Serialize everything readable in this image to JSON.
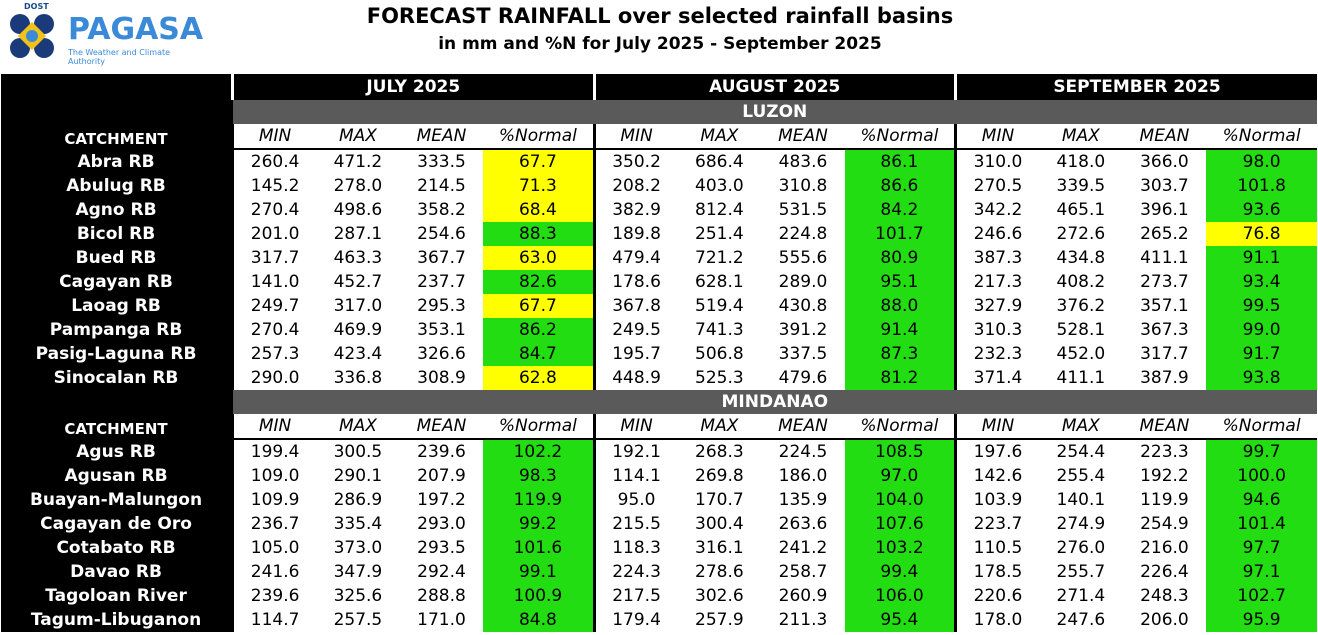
{
  "header": {
    "dost": "DOST",
    "brand": "PAGASA",
    "tagline": "The Weather and Climate Authority",
    "title": "FORECAST RAINFALL over selected rainfall basins",
    "subtitle": "in mm and %N for July 2025 - September 2025"
  },
  "months": [
    "JULY 2025",
    "AUGUST 2025",
    "SEPTEMBER 2025"
  ],
  "column_labels": {
    "catchment": "CATCHMENT",
    "min": "MIN",
    "max": "MAX",
    "mean": "MEAN",
    "normal": "%Normal"
  },
  "colors": {
    "green": "#22dd11",
    "yellow": "#ffff00",
    "black": "#000000",
    "gray": "#5a5a5a",
    "brand": "#3a8ad8"
  },
  "regions": [
    {
      "name": "LUZON",
      "rows": [
        {
          "name": "Abra RB",
          "vals": [
            [
              "260.4",
              "471.2",
              "333.5",
              "67.7",
              "yellow"
            ],
            [
              "350.2",
              "686.4",
              "483.6",
              "86.1",
              "green"
            ],
            [
              "310.0",
              "418.0",
              "366.0",
              "98.0",
              "green"
            ]
          ]
        },
        {
          "name": "Abulug RB",
          "vals": [
            [
              "145.2",
              "278.0",
              "214.5",
              "71.3",
              "yellow"
            ],
            [
              "208.2",
              "403.0",
              "310.8",
              "86.6",
              "green"
            ],
            [
              "270.5",
              "339.5",
              "303.7",
              "101.8",
              "green"
            ]
          ]
        },
        {
          "name": "Agno RB",
          "vals": [
            [
              "270.4",
              "498.6",
              "358.2",
              "68.4",
              "yellow"
            ],
            [
              "382.9",
              "812.4",
              "531.5",
              "84.2",
              "green"
            ],
            [
              "342.2",
              "465.1",
              "396.1",
              "93.6",
              "green"
            ]
          ]
        },
        {
          "name": "Bicol RB",
          "vals": [
            [
              "201.0",
              "287.1",
              "254.6",
              "88.3",
              "green"
            ],
            [
              "189.8",
              "251.4",
              "224.8",
              "101.7",
              "green"
            ],
            [
              "246.6",
              "272.6",
              "265.2",
              "76.8",
              "yellow"
            ]
          ]
        },
        {
          "name": "Bued RB",
          "vals": [
            [
              "317.7",
              "463.3",
              "367.7",
              "63.0",
              "yellow"
            ],
            [
              "479.4",
              "721.2",
              "555.6",
              "80.9",
              "green"
            ],
            [
              "387.3",
              "434.8",
              "411.1",
              "91.1",
              "green"
            ]
          ]
        },
        {
          "name": "Cagayan RB",
          "vals": [
            [
              "141.0",
              "452.7",
              "237.7",
              "82.6",
              "green"
            ],
            [
              "178.6",
              "628.1",
              "289.0",
              "95.1",
              "green"
            ],
            [
              "217.3",
              "408.2",
              "273.7",
              "93.4",
              "green"
            ]
          ]
        },
        {
          "name": "Laoag RB",
          "vals": [
            [
              "249.7",
              "317.0",
              "295.3",
              "67.7",
              "yellow"
            ],
            [
              "367.8",
              "519.4",
              "430.8",
              "88.0",
              "green"
            ],
            [
              "327.9",
              "376.2",
              "357.1",
              "99.5",
              "green"
            ]
          ]
        },
        {
          "name": "Pampanga RB",
          "vals": [
            [
              "270.4",
              "469.9",
              "353.1",
              "86.2",
              "green"
            ],
            [
              "249.5",
              "741.3",
              "391.2",
              "91.4",
              "green"
            ],
            [
              "310.3",
              "528.1",
              "367.3",
              "99.0",
              "green"
            ]
          ]
        },
        {
          "name": "Pasig-Laguna RB",
          "vals": [
            [
              "257.3",
              "423.4",
              "326.6",
              "84.7",
              "green"
            ],
            [
              "195.7",
              "506.8",
              "337.5",
              "87.3",
              "green"
            ],
            [
              "232.3",
              "452.0",
              "317.7",
              "91.7",
              "green"
            ]
          ]
        },
        {
          "name": "Sinocalan RB",
          "vals": [
            [
              "290.0",
              "336.8",
              "308.9",
              "62.8",
              "yellow"
            ],
            [
              "448.9",
              "525.3",
              "479.6",
              "81.2",
              "green"
            ],
            [
              "371.4",
              "411.1",
              "387.9",
              "93.8",
              "green"
            ]
          ]
        }
      ]
    },
    {
      "name": "MINDANAO",
      "rows": [
        {
          "name": "Agus RB",
          "vals": [
            [
              "199.4",
              "300.5",
              "239.6",
              "102.2",
              "green"
            ],
            [
              "192.1",
              "268.3",
              "224.5",
              "108.5",
              "green"
            ],
            [
              "197.6",
              "254.4",
              "223.3",
              "99.7",
              "green"
            ]
          ]
        },
        {
          "name": "Agusan RB",
          "vals": [
            [
              "109.0",
              "290.1",
              "207.9",
              "98.3",
              "green"
            ],
            [
              "114.1",
              "269.8",
              "186.0",
              "97.0",
              "green"
            ],
            [
              "142.6",
              "255.4",
              "192.2",
              "100.0",
              "green"
            ]
          ]
        },
        {
          "name": "Buayan-Malungon",
          "vals": [
            [
              "109.9",
              "286.9",
              "197.2",
              "119.9",
              "green"
            ],
            [
              "95.0",
              "170.7",
              "135.9",
              "104.0",
              "green"
            ],
            [
              "103.9",
              "140.1",
              "119.9",
              "94.6",
              "green"
            ]
          ]
        },
        {
          "name": "Cagayan de Oro",
          "vals": [
            [
              "236.7",
              "335.4",
              "293.0",
              "99.2",
              "green"
            ],
            [
              "215.5",
              "300.4",
              "263.6",
              "107.6",
              "green"
            ],
            [
              "223.7",
              "274.9",
              "254.9",
              "101.4",
              "green"
            ]
          ]
        },
        {
          "name": "Cotabato RB",
          "vals": [
            [
              "105.0",
              "373.0",
              "293.5",
              "101.6",
              "green"
            ],
            [
              "118.3",
              "316.1",
              "241.2",
              "103.2",
              "green"
            ],
            [
              "110.5",
              "276.0",
              "216.0",
              "97.7",
              "green"
            ]
          ]
        },
        {
          "name": "Davao RB",
          "vals": [
            [
              "241.6",
              "347.9",
              "292.4",
              "99.1",
              "green"
            ],
            [
              "224.3",
              "278.6",
              "258.7",
              "99.4",
              "green"
            ],
            [
              "178.5",
              "255.7",
              "226.4",
              "97.1",
              "green"
            ]
          ]
        },
        {
          "name": "Tagoloan River",
          "vals": [
            [
              "239.6",
              "325.6",
              "288.8",
              "100.9",
              "green"
            ],
            [
              "217.5",
              "302.6",
              "260.9",
              "106.0",
              "green"
            ],
            [
              "220.6",
              "271.4",
              "248.3",
              "102.7",
              "green"
            ]
          ]
        },
        {
          "name": "Tagum-Libuganon",
          "vals": [
            [
              "114.7",
              "257.5",
              "171.0",
              "84.8",
              "green"
            ],
            [
              "179.4",
              "257.9",
              "211.3",
              "95.4",
              "green"
            ],
            [
              "178.0",
              "247.6",
              "206.0",
              "95.9",
              "green"
            ]
          ]
        }
      ]
    }
  ]
}
